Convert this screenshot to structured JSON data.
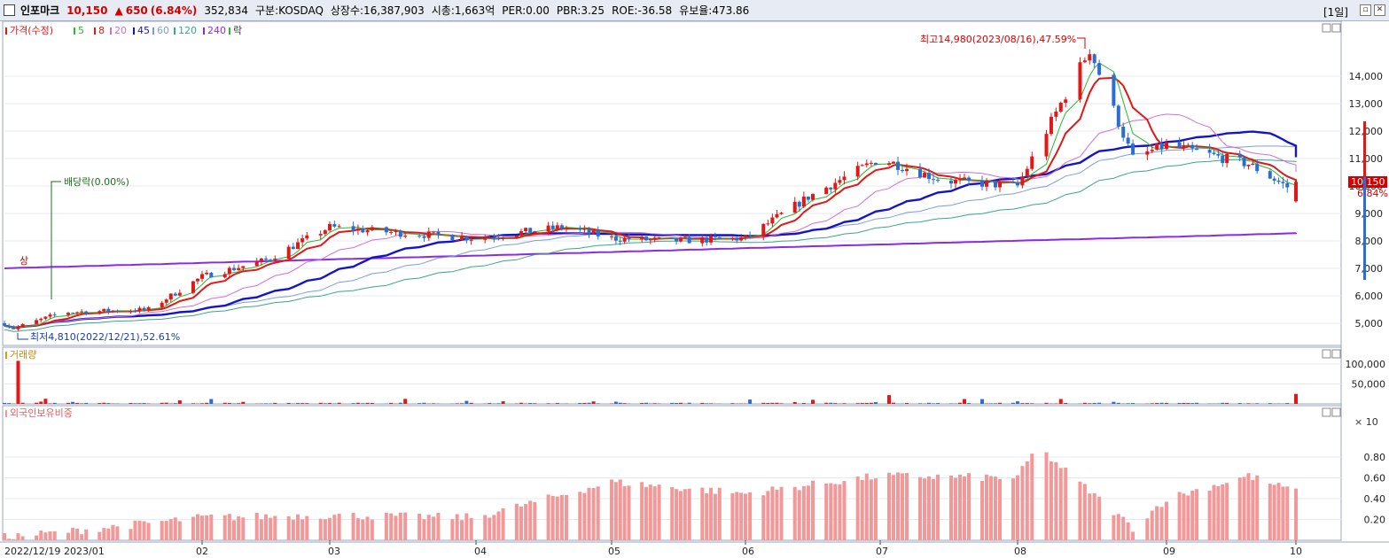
{
  "header": {
    "name": "인포마크",
    "price": "10,150",
    "change_arrow": "▲",
    "change": "650",
    "change_pct": "(6.84%)",
    "volume": "352,834",
    "market": "구분:KOSDAQ",
    "shares": "상장수:16,387,903",
    "mcap": "시총:1,663억",
    "per": "PER:0.00",
    "pbr": "PBR:3.25",
    "roe": "ROE:-36.58",
    "float": "유보율:473.86",
    "period": "[1일]"
  },
  "legend": {
    "price": "가격(수정)",
    "ma5": "5",
    "ma8": "8",
    "ma20": "20",
    "ma45": "45",
    "ma60": "60",
    "ma120": "120",
    "ma240": "240",
    "ex": "락"
  },
  "colors": {
    "up": "#e01818",
    "down": "#2a6fd0",
    "ma5": "#29b82e",
    "ma8": "#e01818",
    "ma20": "#d070d0",
    "ma45": "#1414c8",
    "ma60": "#7aa0d8",
    "ma120": "#3aa68a",
    "ma240": "#8a2be2",
    "foreign": "#f39898"
  },
  "annotations": {
    "high": "최고14,980(2023/08/16),47.59%",
    "low": "최저4,810(2022/12/21),52.61%",
    "dividend": "배당락(0.00%)",
    "tag": "상"
  },
  "last_price_box": {
    "price": "10,150",
    "pct": "6.84%"
  },
  "volume_panel": {
    "title": "거래량",
    "unit": "× 10"
  },
  "foreign_panel": {
    "title": "외국인보유비중"
  },
  "axes": {
    "price_ticks": [
      "14,000",
      "13,000",
      "12,000",
      "11,000",
      "10,000",
      "9,000",
      "8,000",
      "7,000",
      "6,000",
      "5,000"
    ],
    "volume_ticks": [
      "100,000",
      "50,000"
    ],
    "foreign_ticks": [
      "0.80",
      "0.60",
      "0.40",
      "0.20"
    ],
    "x_labels": [
      "2022/12/19",
      "2023/01",
      "02",
      "03",
      "04",
      "05",
      "06",
      "07",
      "08",
      "09",
      "10"
    ]
  },
  "chart_data": {
    "type": "candlestick",
    "title": "인포마크",
    "x_range": [
      "2022/12/19",
      "2023/10"
    ],
    "price_ylim": [
      4500,
      15000
    ],
    "volume_ylim": [
      0,
      120000
    ],
    "foreign_ylim": [
      0,
      1.0
    ],
    "price_path": [
      [
        "2022/12/19",
        5000
      ],
      [
        "2022/12/21",
        4810
      ],
      [
        "2023/01",
        5400
      ],
      [
        "2023/01/20",
        5500
      ],
      [
        "2023/02",
        6700
      ],
      [
        "2023/02/15",
        7300
      ],
      [
        "2023/03",
        8500
      ],
      [
        "2023/03/15",
        8300
      ],
      [
        "2023/04",
        8100
      ],
      [
        "2023/04/20",
        8500
      ],
      [
        "2023/05",
        8100
      ],
      [
        "2023/05/15",
        8000
      ],
      [
        "2023/06",
        8100
      ],
      [
        "2023/06/15",
        9600
      ],
      [
        "2023/07",
        11000
      ],
      [
        "2023/07/15",
        10200
      ],
      [
        "2023/08",
        10000
      ],
      [
        "2023/08/10",
        13000
      ],
      [
        "2023/08/16",
        14980
      ],
      [
        "2023/08/25",
        11000
      ],
      [
        "2023/09",
        11500
      ],
      [
        "2023/09/20",
        10800
      ],
      [
        "2023/10/04",
        9500
      ],
      [
        "2023/10/05",
        10150
      ]
    ],
    "moving_averages": {
      "ma240_start": 7000,
      "ma240_end": 8300,
      "ma45_end": 11200,
      "ma120_end": 9800
    },
    "volume_peaks": [
      [
        "2022/12/22",
        108000
      ],
      [
        "2023/07/03",
        22000
      ],
      [
        "2023/10/05",
        25000
      ]
    ],
    "foreign_path": [
      [
        "2022/12/19",
        0.03
      ],
      [
        "2023/01",
        0.08
      ],
      [
        "2023/02",
        0.22
      ],
      [
        "2023/03",
        0.24
      ],
      [
        "2023/04",
        0.22
      ],
      [
        "2023/05",
        0.56
      ],
      [
        "2023/06",
        0.45
      ],
      [
        "2023/07",
        0.62
      ],
      [
        "2023/08",
        0.6
      ],
      [
        "2023/08/05",
        0.9
      ],
      [
        "2023/08/25",
        0.12
      ],
      [
        "2023/09",
        0.4
      ],
      [
        "2023/09/20",
        0.62
      ],
      [
        "2023/10",
        0.46
      ]
    ]
  }
}
